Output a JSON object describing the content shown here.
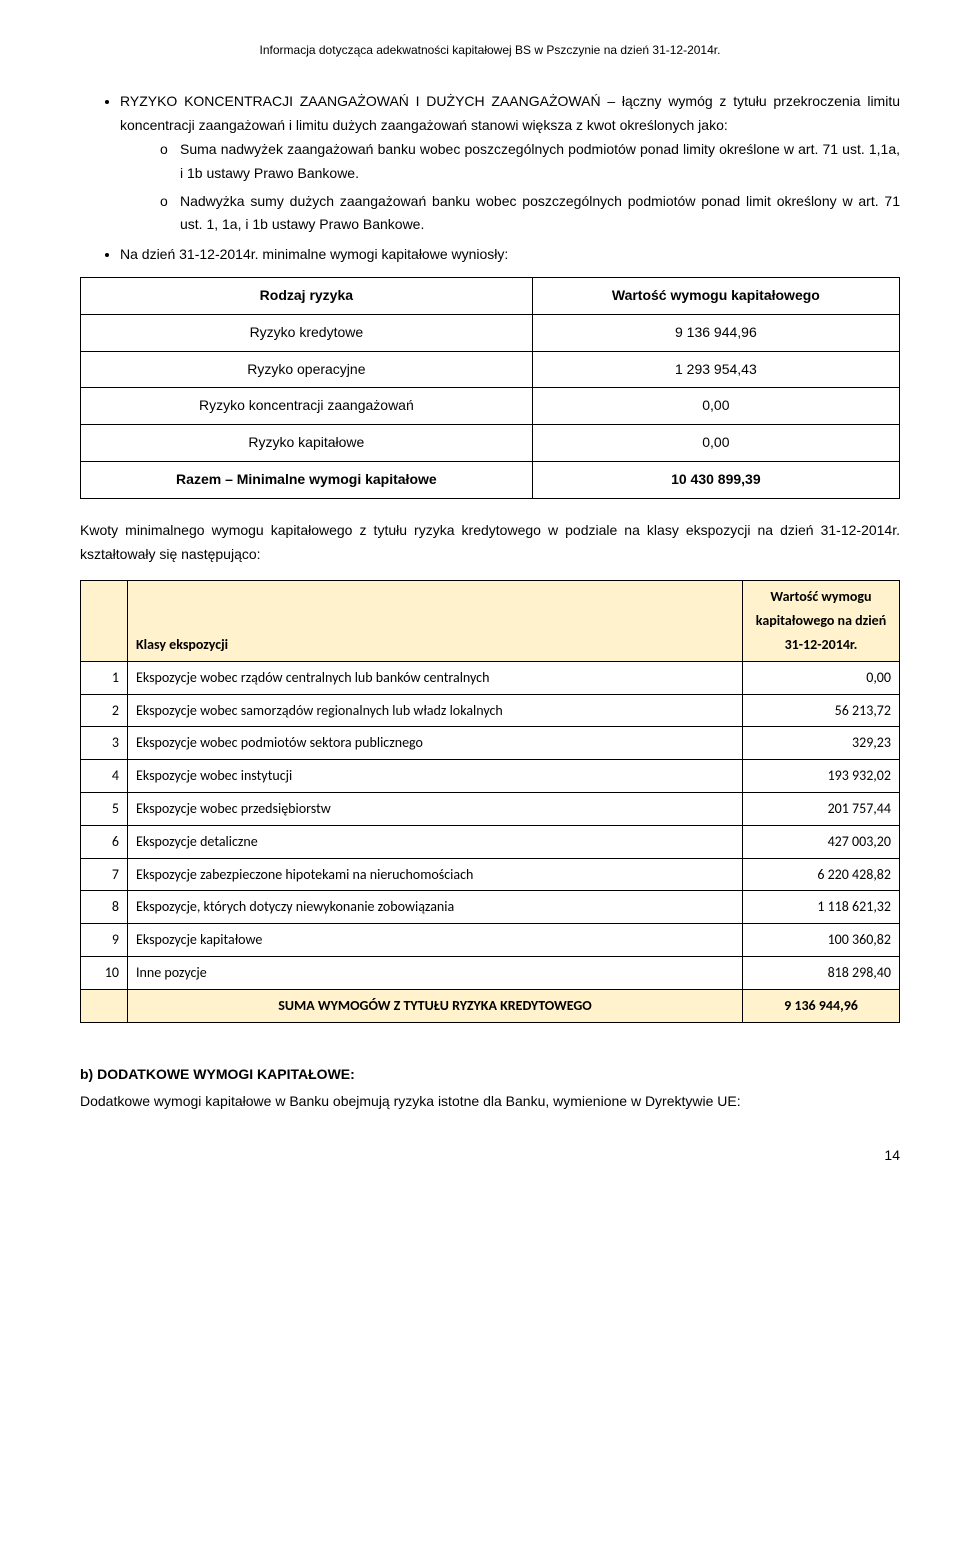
{
  "header": "Informacja dotycząca adekwatności kapitałowej BS w Pszczynie na dzień 31-12-2014r.",
  "bullets": {
    "b0": "RYZYKO KONCENTRACJI ZAANGAŻOWAŃ I DUŻYCH ZAANGAŻOWAŃ – łączny wymóg z tytułu przekroczenia limitu koncentracji zaangażowań i limitu dużych zaangażowań stanowi większa z kwot określonych jako:",
    "s0m": "o",
    "s0": "Suma nadwyżek zaangażowań banku wobec poszczególnych podmiotów ponad limity określone w art. 71 ust. 1,1a, i 1b ustawy Prawo Bankowe.",
    "s1m": "o",
    "s1": "Nadwyżka sumy dużych zaangażowań banku wobec poszczególnych podmiotów ponad limit określony w art. 71 ust. 1, 1a, i 1b ustawy Prawo Bankowe.",
    "b1": "Na dzień 31-12-2014r. minimalne wymogi kapitałowe wyniosły:"
  },
  "t1": {
    "h0": "Rodzaj ryzyka",
    "h1": "Wartość wymogu kapitałowego",
    "r0l": "Ryzyko kredytowe",
    "r0v": "9 136 944,96",
    "r1l": "Ryzyko operacyjne",
    "r1v": "1 293 954,43",
    "r2l": "Ryzyko koncentracji zaangażowań",
    "r2v": "0,00",
    "r3l": "Ryzyko kapitałowe",
    "r3v": "0,00",
    "r4l": "Razem – Minimalne wymogi kapitałowe",
    "r4v": "10 430 899,39"
  },
  "mid": "Kwoty minimalnego wymogu kapitałowego z tytułu ryzyka kredytowego w podziale na klasy ekspozycji na dzień 31-12-2014r. kształtowały się następująco:",
  "t2": {
    "h0": "Klasy ekspozycji",
    "h1": "Wartość wymogu kapitałowego na dzień 31-12-2014r.",
    "rows": [
      {
        "n": "1",
        "d": "Ekspozycje wobec rządów centralnych lub banków centralnych",
        "v": "0,00"
      },
      {
        "n": "2",
        "d": "Ekspozycje wobec samorządów regionalnych lub władz lokalnych",
        "v": "56 213,72"
      },
      {
        "n": "3",
        "d": "Ekspozycje wobec podmiotów sektora publicznego",
        "v": "329,23"
      },
      {
        "n": "4",
        "d": "Ekspozycje wobec instytucji",
        "v": "193 932,02"
      },
      {
        "n": "5",
        "d": "Ekspozycje wobec przedsiębiorstw",
        "v": "201 757,44"
      },
      {
        "n": "6",
        "d": "Ekspozycje detaliczne",
        "v": "427 003,20"
      },
      {
        "n": "7",
        "d": "Ekspozycje zabezpieczone hipotekami na nieruchomościach",
        "v": "6 220 428,82"
      },
      {
        "n": "8",
        "d": "Ekspozycje, których dotyczy niewykonanie zobowiązania",
        "v": "1 118 621,32"
      },
      {
        "n": "9",
        "d": "Ekspozycje kapitałowe",
        "v": "100 360,82"
      },
      {
        "n": "10",
        "d": "Inne pozycje",
        "v": "818 298,40"
      }
    ],
    "suml": "SUMA  WYMOGÓW Z TYTUŁU RYZYKA KREDYTOWEGO",
    "sumr": "9 136 944,96"
  },
  "secB": {
    "title": "b)        DODATKOWE WYMOGI KAPITAŁOWE:",
    "text": "Dodatkowe wymogi kapitałowe w Banku obejmują ryzyka istotne dla Banku,  wymienione w Dyrektywie UE:"
  },
  "pageNum": "14"
}
